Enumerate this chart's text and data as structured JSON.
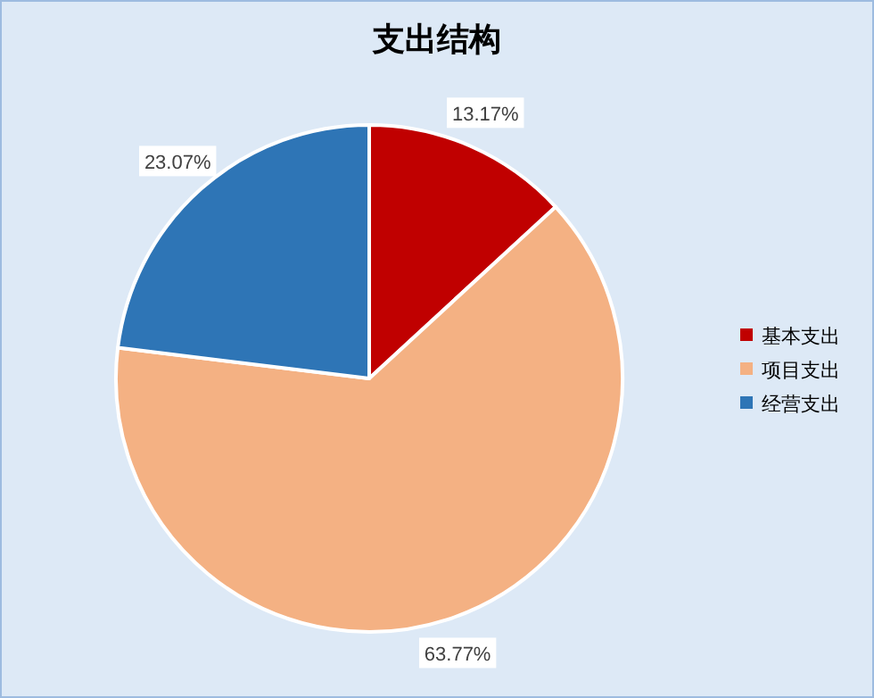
{
  "chart_data": {
    "type": "pie",
    "title": "支出结构",
    "categories": [
      "基本支出",
      "项目支出",
      "经营支出"
    ],
    "values": [
      13.17,
      63.77,
      23.07
    ],
    "value_labels": [
      "13.17%",
      "63.77%",
      "23.07%"
    ],
    "colors": [
      "#c00000",
      "#f4b183",
      "#2e75b6"
    ],
    "legend": "right"
  }
}
